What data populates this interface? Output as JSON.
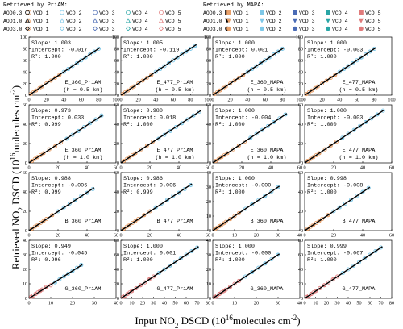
{
  "figure": {
    "ylabel_prefix": "Retrieved NO",
    "ylabel_sub": "2",
    "ylabel_mid": " DSCD (10",
    "ylabel_sup": "16",
    "ylabel_suffix": "molecules cm",
    "ylabel_sup2": "-2",
    "ylabel_end": ")",
    "xlabel_prefix": "Input NO",
    "xlabel_sub": "2",
    "xlabel_mid": " DSCD (10",
    "xlabel_sup": "16",
    "xlabel_suffix": "molecules cm",
    "xlabel_sup2": "-2",
    "xlabel_end": ")"
  },
  "legend": {
    "priam_title": "Retrieved by PriAM:",
    "mapa_title": "Retrieved by MAPA:",
    "entries": [
      [
        "AOD0.3",
        "VCD_1",
        "VCD_2",
        "VCD_3",
        "VCD_4",
        "VCD_5"
      ],
      [
        "AOD1.0",
        "VCD_1",
        "VCD_2",
        "VCD_3",
        "VCD_4",
        "VCD_5"
      ],
      [
        "AOD3.0",
        "VCD_1",
        "VCD_2",
        "VCD_3",
        "VCD_4",
        "VCD_5"
      ]
    ],
    "colors": {
      "VCD_1": "#e8a06a",
      "VCD_2": "#7ec8e8",
      "VCD_3": "#4a6bb5",
      "VCD_4": "#2aa6a6",
      "VCD_5": "#e07b7b",
      "black": "#000000"
    }
  },
  "chart_data": [
    {
      "type": "scatter",
      "label": "E_360_PriAM",
      "height_label": "(h = 0.5 km)",
      "slope": "1.003",
      "intercept": "-0.017",
      "r2": "1.000",
      "xlim": [
        0,
        100
      ],
      "ylim": [
        0,
        100
      ],
      "xticks": [
        0,
        20,
        40,
        60,
        80,
        100
      ],
      "yticks": [
        0,
        20,
        40,
        60,
        80,
        100
      ],
      "x": [
        2,
        5,
        8,
        12,
        15,
        20,
        25,
        30,
        35,
        40,
        45,
        50,
        55,
        60,
        65,
        70,
        75,
        80
      ],
      "y": [
        2,
        5,
        8,
        12,
        15,
        20,
        25,
        30,
        35,
        40,
        45,
        50,
        55,
        60,
        65,
        70,
        75,
        80
      ]
    },
    {
      "type": "scatter",
      "label": "E_477_PriAM",
      "height_label": "(h = 0.5 km)",
      "slope": "1.005",
      "intercept": "-0.119",
      "r2": "1.000",
      "xlim": [
        0,
        100
      ],
      "ylim": [
        0,
        100
      ],
      "xticks": [
        0,
        20,
        40,
        60,
        80,
        100
      ],
      "yticks": [
        0,
        20,
        40,
        60,
        80,
        100
      ],
      "x": [
        2,
        5,
        8,
        12,
        15,
        20,
        25,
        30,
        35,
        40,
        45,
        50,
        55,
        60,
        65,
        70,
        75,
        80,
        85
      ],
      "y": [
        2,
        5,
        8,
        12,
        15,
        20,
        25,
        30,
        35,
        40,
        45,
        50,
        55,
        60,
        65,
        70,
        75,
        80,
        85
      ]
    },
    {
      "type": "scatter",
      "label": "E_360_MAPA",
      "height_label": "(h = 0.5 km)",
      "slope": "1.000",
      "intercept": "0.001",
      "r2": "1.000",
      "xlim": [
        0,
        100
      ],
      "ylim": [
        0,
        100
      ],
      "xticks": [
        0,
        20,
        40,
        60,
        80,
        100
      ],
      "yticks": [
        0,
        20,
        40,
        60,
        80,
        100
      ],
      "x": [
        2,
        5,
        8,
        12,
        15,
        20,
        25,
        30,
        35,
        40,
        45,
        50,
        55,
        60,
        65,
        70,
        75,
        80
      ],
      "y": [
        2,
        5,
        8,
        12,
        15,
        20,
        25,
        30,
        35,
        40,
        45,
        50,
        55,
        60,
        65,
        70,
        75,
        80
      ]
    },
    {
      "type": "scatter",
      "label": "E_477_MAPA",
      "height_label": "(h = 0.5 km)",
      "slope": "1.000",
      "intercept": "-0.003",
      "r2": "1.000",
      "xlim": [
        0,
        100
      ],
      "ylim": [
        0,
        100
      ],
      "xticks": [
        0,
        20,
        40,
        60,
        80,
        100
      ],
      "yticks": [
        0,
        20,
        40,
        60,
        80,
        100
      ],
      "x": [
        2,
        5,
        8,
        12,
        15,
        20,
        25,
        30,
        35,
        40,
        45,
        50,
        55,
        60,
        65,
        70,
        75,
        80
      ],
      "y": [
        2,
        5,
        8,
        12,
        15,
        20,
        25,
        30,
        35,
        40,
        45,
        50,
        55,
        60,
        65,
        70,
        75,
        80
      ]
    },
    {
      "type": "scatter",
      "label": "E_360_PriAM",
      "height_label": "(h = 1.0 km)",
      "slope": "0.973",
      "intercept": "0.033",
      "r2": "0.999",
      "xlim": [
        0,
        60
      ],
      "ylim": [
        0,
        60
      ],
      "xticks": [
        0,
        20,
        40,
        60
      ],
      "yticks": [
        0,
        20,
        40,
        60
      ],
      "x": [
        2,
        4,
        6,
        8,
        10,
        14,
        18,
        22,
        26,
        30,
        34,
        38,
        42,
        46,
        50
      ],
      "y": [
        2,
        4,
        6,
        8,
        10,
        14,
        17,
        21,
        25,
        29,
        33,
        37,
        41,
        45,
        49
      ]
    },
    {
      "type": "scatter",
      "label": "E_477_PriAM",
      "height_label": "(h = 1.0 km)",
      "slope": "0.980",
      "intercept": "0.018",
      "r2": "1.000",
      "xlim": [
        0,
        60
      ],
      "ylim": [
        0,
        60
      ],
      "xticks": [
        0,
        20,
        40,
        60
      ],
      "yticks": [
        0,
        20,
        40,
        60
      ],
      "x": [
        2,
        4,
        6,
        8,
        10,
        14,
        18,
        22,
        26,
        30,
        34,
        38,
        42,
        46,
        50,
        54
      ],
      "y": [
        2,
        4,
        6,
        8,
        10,
        14,
        18,
        22,
        25,
        29,
        33,
        37,
        41,
        45,
        49,
        53
      ]
    },
    {
      "type": "scatter",
      "label": "E_360_MAPA",
      "height_label": "(h = 1.0 km)",
      "slope": "1.000",
      "intercept": "-0.004",
      "r2": "1.000",
      "xlim": [
        0,
        60
      ],
      "ylim": [
        0,
        60
      ],
      "xticks": [
        0,
        20,
        40,
        60
      ],
      "yticks": [
        0,
        20,
        40,
        60
      ],
      "x": [
        2,
        4,
        6,
        8,
        10,
        14,
        18,
        22,
        26,
        30,
        34,
        38,
        42,
        46,
        50
      ],
      "y": [
        2,
        4,
        6,
        8,
        10,
        14,
        18,
        22,
        26,
        30,
        34,
        38,
        42,
        46,
        50
      ]
    },
    {
      "type": "scatter",
      "label": "E_477_MAPA",
      "height_label": "(h = 1.0 km)",
      "slope": "1.000",
      "intercept": "-0.003",
      "r2": "1.000",
      "xlim": [
        0,
        60
      ],
      "ylim": [
        0,
        60
      ],
      "xticks": [
        0,
        20,
        40,
        60
      ],
      "yticks": [
        0,
        20,
        40,
        60
      ],
      "x": [
        2,
        4,
        6,
        8,
        10,
        14,
        18,
        22,
        26,
        30,
        34,
        38,
        42,
        46,
        50,
        54
      ],
      "y": [
        2,
        4,
        6,
        8,
        10,
        14,
        18,
        22,
        26,
        30,
        34,
        38,
        42,
        46,
        50,
        54
      ]
    },
    {
      "type": "scatter",
      "label": "B_360_PriAM",
      "height_label": "",
      "slope": "0.988",
      "intercept": "-0.006",
      "r2": "0.999",
      "xlim": [
        0,
        60
      ],
      "ylim": [
        0,
        60
      ],
      "xticks": [
        0,
        20,
        40,
        60
      ],
      "yticks": [
        0,
        20,
        40,
        60
      ],
      "x": [
        2,
        4,
        6,
        8,
        10,
        12,
        16,
        20,
        24,
        28,
        32,
        36,
        40,
        44
      ],
      "y": [
        2,
        4,
        6,
        8,
        10,
        12,
        16,
        20,
        24,
        28,
        32,
        36,
        39,
        43
      ]
    },
    {
      "type": "scatter",
      "label": "B_477_PriAM",
      "height_label": "",
      "slope": "0.986",
      "intercept": "0.006",
      "r2": "0.999",
      "xlim": [
        0,
        60
      ],
      "ylim": [
        0,
        60
      ],
      "xticks": [
        0,
        20,
        40,
        60
      ],
      "yticks": [
        0,
        20,
        40,
        60
      ],
      "x": [
        2,
        4,
        6,
        8,
        10,
        12,
        16,
        20,
        24,
        28,
        32,
        36,
        40,
        44,
        48
      ],
      "y": [
        2,
        4,
        6,
        8,
        10,
        12,
        16,
        20,
        24,
        28,
        32,
        36,
        39,
        43,
        47
      ]
    },
    {
      "type": "scatter",
      "label": "B_360_MAPA",
      "height_label": "",
      "slope": "1.000",
      "intercept": "-0.000",
      "r2": "1.000",
      "xlim": [
        0,
        40
      ],
      "ylim": [
        0,
        40
      ],
      "xticks": [
        0,
        10,
        20,
        30,
        40
      ],
      "yticks": [
        0,
        10,
        20,
        30,
        40
      ],
      "x": [
        1,
        2,
        3,
        4,
        5,
        6,
        8,
        10,
        12,
        15,
        18,
        21,
        24,
        27,
        30
      ],
      "y": [
        1,
        2,
        3,
        4,
        5,
        6,
        8,
        10,
        12,
        15,
        18,
        21,
        24,
        27,
        30
      ]
    },
    {
      "type": "scatter",
      "label": "B_477_MAPA",
      "height_label": "",
      "slope": "0.998",
      "intercept": "-0.008",
      "r2": "1.000",
      "xlim": [
        0,
        60
      ],
      "ylim": [
        0,
        60
      ],
      "xticks": [
        0,
        20,
        40,
        60
      ],
      "yticks": [
        0,
        20,
        40,
        60
      ],
      "x": [
        2,
        4,
        6,
        8,
        10,
        12,
        16,
        20,
        24,
        28,
        32,
        36,
        40,
        44
      ],
      "y": [
        2,
        4,
        6,
        8,
        10,
        12,
        16,
        20,
        24,
        28,
        32,
        36,
        40,
        44
      ]
    },
    {
      "type": "scatter",
      "label": "G_360_PriAM",
      "height_label": "",
      "slope": "0.949",
      "intercept": "-0.045",
      "r2": "0.996",
      "xlim": [
        0,
        40
      ],
      "ylim": [
        0,
        40
      ],
      "xticks": [
        0,
        10,
        20,
        30,
        40
      ],
      "yticks": [
        0,
        10,
        20,
        30,
        40
      ],
      "x": [
        1,
        2,
        3,
        4,
        5,
        6,
        8,
        10,
        12,
        14,
        16,
        18,
        20,
        22,
        24
      ],
      "y": [
        1,
        2,
        3,
        4,
        5,
        6,
        8,
        9,
        11,
        13,
        15,
        17,
        19,
        21,
        23
      ]
    },
    {
      "type": "scatter",
      "label": "G_477_PriAM",
      "height_label": "",
      "slope": "1.000",
      "intercept": "0.001",
      "r2": "1.000",
      "xlim": [
        0,
        80
      ],
      "ylim": [
        0,
        80
      ],
      "xticks": [
        0,
        10,
        20,
        30,
        40,
        50,
        60,
        70,
        80
      ],
      "yticks": [
        0,
        20,
        40,
        60,
        80
      ],
      "x": [
        2,
        4,
        6,
        8,
        10,
        14,
        18,
        22,
        26,
        30,
        35,
        40,
        45,
        50,
        55,
        60,
        65,
        70
      ],
      "y": [
        2,
        4,
        6,
        8,
        10,
        14,
        18,
        22,
        26,
        30,
        35,
        40,
        45,
        50,
        55,
        60,
        65,
        70
      ]
    },
    {
      "type": "scatter",
      "label": "G_360_MAPA",
      "height_label": "",
      "slope": "1.000",
      "intercept": "-0.000",
      "r2": "1.000",
      "xlim": [
        0,
        40
      ],
      "ylim": [
        0,
        40
      ],
      "xticks": [
        0,
        10,
        20,
        30,
        40
      ],
      "yticks": [
        0,
        10,
        20,
        30,
        40
      ],
      "x": [
        1,
        2,
        3,
        4,
        5,
        6,
        8,
        10,
        12,
        15,
        18,
        21,
        24,
        27,
        30
      ],
      "y": [
        1,
        2,
        3,
        4,
        5,
        6,
        8,
        10,
        12,
        15,
        18,
        21,
        24,
        27,
        30
      ]
    },
    {
      "type": "scatter",
      "label": "G_477_MAPA",
      "height_label": "",
      "slope": "0.999",
      "intercept": "-0.067",
      "r2": "1.000",
      "xlim": [
        0,
        80
      ],
      "ylim": [
        0,
        80
      ],
      "xticks": [
        0,
        10,
        20,
        30,
        40,
        50,
        60,
        70,
        80
      ],
      "yticks": [
        0,
        20,
        40,
        60,
        80
      ],
      "x": [
        2,
        4,
        6,
        8,
        10,
        14,
        18,
        22,
        26,
        30,
        35,
        40,
        45,
        50,
        55,
        60,
        65,
        70
      ],
      "y": [
        2,
        4,
        6,
        8,
        10,
        14,
        18,
        22,
        26,
        30,
        35,
        40,
        45,
        50,
        55,
        60,
        65,
        70
      ]
    }
  ]
}
